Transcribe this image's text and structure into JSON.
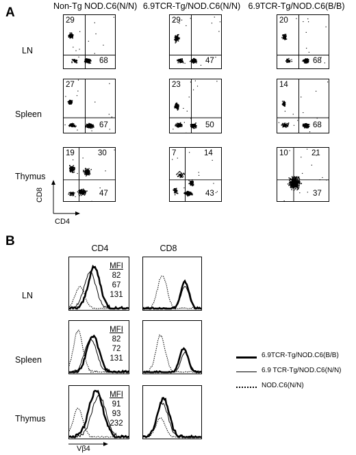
{
  "panelA": {
    "letter": "A",
    "columns": [
      "Non-Tg NOD.C6(N/N)",
      "6.9TCR-Tg/NOD.C6(N/N)",
      "6.9TCR-Tg/NOD.C6(B/B)"
    ],
    "rows": [
      "LN",
      "Spleen",
      "Thymus"
    ],
    "y_axis": "CD8",
    "x_axis": "CD4",
    "quadrants": [
      [
        {
          "ul": "29",
          "ur": "",
          "lr": "68"
        },
        {
          "ul": "29",
          "ur": "",
          "lr": "47"
        },
        {
          "ul": "20",
          "ur": "",
          "lr": "68"
        }
      ],
      [
        {
          "ul": "27",
          "ur": "",
          "lr": "67"
        },
        {
          "ul": "23",
          "ur": "",
          "lr": "50"
        },
        {
          "ul": "14",
          "ur": "",
          "lr": "68"
        }
      ],
      [
        {
          "ul": "19",
          "ur": "30",
          "lr": "47"
        },
        {
          "ul": "7",
          "ur": "14",
          "lr": "43"
        },
        {
          "ul": "10",
          "ur": "21",
          "lr": "37"
        }
      ]
    ]
  },
  "panelB": {
    "letter": "B",
    "columns": [
      "CD4",
      "CD8"
    ],
    "rows": [
      "LN",
      "Spleen",
      "Thymus"
    ],
    "x_axis": "Vβ4",
    "mfi_header": "MFI",
    "mfi": [
      [
        "82",
        "67",
        "131"
      ],
      [
        "82",
        "72",
        "131"
      ],
      [
        "91",
        "93",
        "232"
      ]
    ],
    "legend": [
      "6.9TCR-Tg/NOD.C6(B/B)",
      "6.9 TCR-Tg/NOD.C6(N/N)",
      "NOD.C6(N/N)"
    ]
  }
}
